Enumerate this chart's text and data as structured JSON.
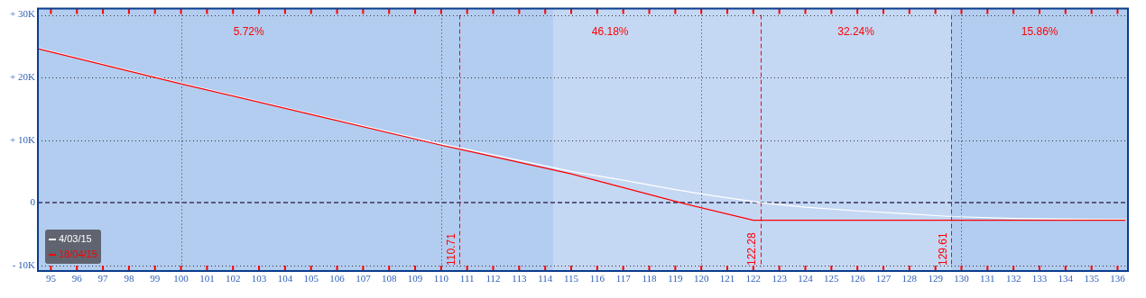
{
  "chart_data": {
    "type": "line",
    "xlim": [
      94.5,
      136.4
    ],
    "xticks": [
      95,
      96,
      97,
      98,
      99,
      100,
      101,
      102,
      103,
      104,
      105,
      106,
      107,
      108,
      109,
      110,
      111,
      112,
      113,
      114,
      115,
      116,
      117,
      118,
      119,
      120,
      121,
      122,
      123,
      124,
      125,
      126,
      127,
      128,
      129,
      130,
      131,
      132,
      133,
      134,
      135,
      136
    ],
    "ylim": [
      -10900,
      31000
    ],
    "yticks": [
      {
        "value": -10000,
        "label": "- 10K"
      },
      {
        "value": 0,
        "label": "0"
      },
      {
        "value": 10000,
        "label": "+ 10K"
      },
      {
        "value": 20000,
        "label": "+ 20K"
      },
      {
        "value": 30000,
        "label": "+ 30K"
      }
    ],
    "grid": "y",
    "legend": "bottom left",
    "marker": "none",
    "series": [
      {
        "name": "4/03/15",
        "color": "#ffffff",
        "x": [
          94.5,
          100,
          105,
          110,
          115,
          117,
          119,
          120.5,
          122.3,
          124,
          126,
          128,
          129.6,
          132,
          134,
          136.3
        ],
        "values": [
          24700,
          19100,
          14200,
          9400,
          5000,
          3600,
          2100,
          1100,
          0,
          -700,
          -1300,
          -1800,
          -2200,
          -2500,
          -2600,
          -2700
        ]
      },
      {
        "name": "18/04/15",
        "color": "#ff0000",
        "x": [
          94.5,
          100,
          105,
          110,
          115,
          119.2,
          122,
          136.3
        ],
        "values": [
          24600,
          19000,
          14100,
          9200,
          4600,
          0,
          -2800,
          -2800
        ]
      }
    ],
    "bands": [
      {
        "axis": "x",
        "from": 114.3,
        "to": 129.61,
        "color": "#c4d8f4"
      }
    ],
    "ref_lines": [
      {
        "axis": "y",
        "value": 0,
        "color": "#5a5a80",
        "line_style": "dashed"
      },
      {
        "axis": "x",
        "value": 100,
        "color": "#333333",
        "line_style": "dotted"
      },
      {
        "axis": "x",
        "value": 110,
        "color": "#333333",
        "line_style": "dotted"
      },
      {
        "axis": "x",
        "value": 120,
        "color": "#333333",
        "line_style": "dotted"
      },
      {
        "axis": "x",
        "value": 130,
        "color": "#333333",
        "line_style": "dotted"
      },
      {
        "axis": "x",
        "value": 110.71,
        "label": "110.71",
        "color": "#ff0000",
        "line_style": "dashed"
      },
      {
        "axis": "x",
        "value": 122.28,
        "label": "122.28",
        "color": "#ff0000",
        "line_style": "dashed"
      },
      {
        "axis": "x",
        "value": 129.61,
        "label": "129.61",
        "color": "#ff0000",
        "line_style": "dashed"
      }
    ],
    "annotations": [
      "5.72%",
      "46.18%",
      "32.24%",
      "15.86%"
    ]
  }
}
